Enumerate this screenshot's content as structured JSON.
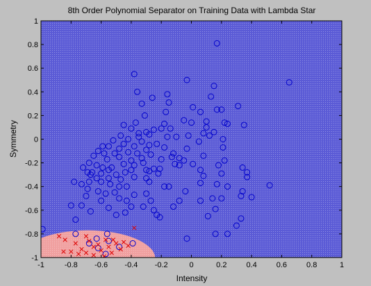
{
  "chart_data": {
    "type": "scatter",
    "title": "8th Order Polynomial Separator on Training Data with Lambda Star",
    "xlabel": "Intensity",
    "ylabel": "Symmetry",
    "xlim": [
      -1,
      1
    ],
    "ylim": [
      -1,
      1
    ],
    "xticks": [
      -1,
      -0.8,
      -0.6,
      -0.4,
      -0.2,
      0,
      0.2,
      0.4,
      0.6,
      0.8,
      1
    ],
    "xtick_labels": [
      "-1",
      "-0.8",
      "-0.6",
      "-0.4",
      "-0.2",
      "0",
      "0.2",
      "0.4",
      "0.6",
      "0.8",
      "1"
    ],
    "yticks": [
      1,
      0.8,
      0.6,
      0.4,
      0.2,
      0,
      -0.2,
      -0.4,
      -0.6,
      -0.8,
      -1
    ],
    "ytick_labels": [
      "1",
      "0.8",
      "0.6",
      "0.4",
      "0.2",
      "0",
      "-0.2",
      "-0.4",
      "-0.6",
      "-0.8",
      "-1"
    ],
    "grid": false,
    "colors": {
      "positive_region": "#5b5bd6",
      "negative_region": "#f0a0a0",
      "circle_marker": "#0000cc",
      "cross_marker": "#dd0000",
      "figure_background": "#c0c0c0"
    },
    "decision_region_negative": {
      "center": [
        -0.69,
        -1.01
      ],
      "radius_x": 0.45,
      "radius_y": 0.24
    },
    "series": [
      {
        "marker": "circle",
        "points": [
          [
            0.17,
            0.81
          ],
          [
            0.65,
            0.48
          ],
          [
            -0.38,
            0.55
          ],
          [
            -0.03,
            0.5
          ],
          [
            0.15,
            0.45
          ],
          [
            0.13,
            0.36
          ],
          [
            -0.36,
            0.4
          ],
          [
            -0.33,
            0.3
          ],
          [
            -0.26,
            0.35
          ],
          [
            -0.16,
            0.38
          ],
          [
            0.01,
            0.27
          ],
          [
            0.17,
            0.25
          ],
          [
            0.2,
            0.25
          ],
          [
            -0.15,
            0.31
          ],
          [
            -0.17,
            0.23
          ],
          [
            0.06,
            0.23
          ],
          [
            0.31,
            0.28
          ],
          [
            0.1,
            0.15
          ],
          [
            0.0,
            0.14
          ],
          [
            -0.31,
            0.2
          ],
          [
            -0.18,
            0.13
          ],
          [
            0.22,
            0.14
          ],
          [
            0.24,
            0.13
          ],
          [
            0.35,
            0.12
          ],
          [
            -0.05,
            0.16
          ],
          [
            -0.14,
            0.09
          ],
          [
            -0.2,
            0.09
          ],
          [
            0.1,
            0.1
          ],
          [
            0.15,
            0.06
          ],
          [
            -0.25,
            0.08
          ],
          [
            -0.3,
            0.06
          ],
          [
            -0.37,
            0.14
          ],
          [
            -0.45,
            0.12
          ],
          [
            -0.4,
            0.09
          ],
          [
            -0.35,
            0.05
          ],
          [
            -0.47,
            0.03
          ],
          [
            -0.28,
            0.04
          ],
          [
            0.08,
            0.05
          ],
          [
            -0.02,
            0.03
          ],
          [
            -0.16,
            0.02
          ],
          [
            0.12,
            0.03
          ],
          [
            0.05,
            -0.02
          ],
          [
            0.21,
            0.0
          ],
          [
            -0.1,
            0.02
          ],
          [
            -0.35,
            0.02
          ],
          [
            -0.42,
            0.0
          ],
          [
            -0.33,
            -0.02
          ],
          [
            -0.52,
            -0.01
          ],
          [
            -0.45,
            -0.04
          ],
          [
            -0.23,
            -0.04
          ],
          [
            -0.28,
            -0.05
          ],
          [
            -0.38,
            -0.06
          ],
          [
            -0.48,
            -0.08
          ],
          [
            -0.55,
            -0.06
          ],
          [
            -0.59,
            -0.06
          ],
          [
            -0.62,
            -0.1
          ],
          [
            -0.58,
            -0.12
          ],
          [
            -0.51,
            -0.12
          ],
          [
            -0.42,
            -0.11
          ],
          [
            -0.36,
            -0.12
          ],
          [
            -0.3,
            -0.09
          ],
          [
            -0.18,
            -0.07
          ],
          [
            -0.12,
            -0.12
          ],
          [
            -0.03,
            -0.08
          ],
          [
            0.21,
            -0.07
          ],
          [
            -0.65,
            -0.14
          ],
          [
            -0.56,
            -0.17
          ],
          [
            -0.48,
            -0.15
          ],
          [
            -0.4,
            -0.18
          ],
          [
            -0.33,
            -0.16
          ],
          [
            -0.27,
            -0.13
          ],
          [
            -0.2,
            -0.17
          ],
          [
            -0.08,
            -0.16
          ],
          [
            -0.13,
            -0.15
          ],
          [
            0.08,
            -0.14
          ],
          [
            -0.68,
            -0.2
          ],
          [
            -0.63,
            -0.22
          ],
          [
            -0.59,
            -0.24
          ],
          [
            -0.53,
            -0.24
          ],
          [
            -0.45,
            -0.21
          ],
          [
            -0.38,
            -0.22
          ],
          [
            -0.32,
            -0.2
          ],
          [
            -0.25,
            -0.25
          ],
          [
            -0.11,
            -0.21
          ],
          [
            -0.05,
            -0.18
          ],
          [
            0.01,
            -0.21
          ],
          [
            0.18,
            -0.22
          ],
          [
            0.22,
            -0.18
          ],
          [
            -0.72,
            -0.24
          ],
          [
            -0.69,
            -0.28
          ],
          [
            -0.66,
            -0.28
          ],
          [
            -0.6,
            -0.29
          ],
          [
            -0.55,
            -0.26
          ],
          [
            -0.5,
            -0.3
          ],
          [
            -0.44,
            -0.28
          ],
          [
            -0.4,
            -0.26
          ],
          [
            -0.3,
            -0.26
          ],
          [
            -0.28,
            -0.27
          ],
          [
            -0.21,
            -0.25
          ],
          [
            -0.08,
            -0.22
          ],
          [
            0.06,
            -0.26
          ],
          [
            -0.67,
            -0.3
          ],
          [
            -0.63,
            -0.33
          ],
          [
            -0.55,
            -0.33
          ],
          [
            -0.47,
            -0.34
          ],
          [
            -0.38,
            -0.32
          ],
          [
            -0.3,
            -0.33
          ],
          [
            -0.22,
            -0.29
          ],
          [
            0.08,
            -0.31
          ],
          [
            0.2,
            -0.29
          ],
          [
            0.37,
            -0.28
          ],
          [
            0.34,
            -0.24
          ],
          [
            -0.78,
            -0.36
          ],
          [
            -0.73,
            -0.38
          ],
          [
            -0.68,
            -0.36
          ],
          [
            -0.6,
            -0.36
          ],
          [
            -0.54,
            -0.38
          ],
          [
            -0.48,
            -0.4
          ],
          [
            -0.43,
            -0.4
          ],
          [
            -0.28,
            -0.36
          ],
          [
            -0.18,
            -0.4
          ],
          [
            0.06,
            -0.37
          ],
          [
            0.17,
            -0.38
          ],
          [
            0.24,
            -0.4
          ],
          [
            0.52,
            -0.39
          ],
          [
            -0.69,
            -0.42
          ],
          [
            -0.62,
            -0.44
          ],
          [
            -0.57,
            -0.46
          ],
          [
            -0.51,
            -0.45
          ],
          [
            -0.38,
            -0.47
          ],
          [
            -0.3,
            -0.46
          ],
          [
            -0.15,
            -0.4
          ],
          [
            -0.04,
            -0.44
          ],
          [
            0.34,
            -0.44
          ],
          [
            0.37,
            -0.32
          ],
          [
            -0.8,
            -0.56
          ],
          [
            -0.73,
            -0.56
          ],
          [
            -0.7,
            -0.48
          ],
          [
            -0.6,
            -0.52
          ],
          [
            -0.48,
            -0.5
          ],
          [
            -0.43,
            -0.52
          ],
          [
            -0.27,
            -0.52
          ],
          [
            -0.08,
            -0.52
          ],
          [
            0.06,
            -0.52
          ],
          [
            0.14,
            -0.5
          ],
          [
            0.2,
            -0.5
          ],
          [
            0.33,
            -0.48
          ],
          [
            0.4,
            -0.49
          ],
          [
            -0.67,
            -0.61
          ],
          [
            -0.55,
            -0.58
          ],
          [
            -0.4,
            -0.57
          ],
          [
            -0.32,
            -0.57
          ],
          [
            -0.25,
            -0.6
          ],
          [
            -0.12,
            -0.57
          ],
          [
            0.16,
            -0.59
          ],
          [
            -0.77,
            -0.68
          ],
          [
            -0.5,
            -0.64
          ],
          [
            -0.44,
            -0.62
          ],
          [
            -0.23,
            -0.64
          ],
          [
            0.11,
            -0.65
          ],
          [
            0.33,
            -0.67
          ],
          [
            -0.99,
            -0.76
          ],
          [
            -0.56,
            -0.8
          ],
          [
            -0.21,
            -0.66
          ],
          [
            0.24,
            -0.8
          ],
          [
            0.3,
            -0.73
          ],
          [
            0.16,
            -0.8
          ],
          [
            -0.03,
            -0.84
          ],
          [
            -0.77,
            -0.8
          ],
          [
            -0.63,
            -0.84
          ],
          [
            -0.55,
            -0.86
          ],
          [
            -0.68,
            -0.88
          ],
          [
            -0.62,
            -0.92
          ],
          [
            -0.57,
            -0.97
          ],
          [
            -0.48,
            -0.91
          ],
          [
            -0.39,
            -0.88
          ]
        ]
      },
      {
        "marker": "x",
        "points": [
          [
            -0.8,
            -0.95
          ],
          [
            -0.77,
            -0.88
          ],
          [
            -0.73,
            -0.93
          ],
          [
            -0.7,
            -0.96
          ],
          [
            -0.65,
            -0.91
          ],
          [
            -0.62,
            -0.89
          ],
          [
            -0.6,
            -0.94
          ],
          [
            -0.57,
            -0.85
          ],
          [
            -0.55,
            -0.91
          ],
          [
            -0.52,
            -0.85
          ],
          [
            -0.5,
            -0.88
          ],
          [
            -0.47,
            -0.93
          ],
          [
            -0.68,
            -0.86
          ],
          [
            -0.75,
            -0.97
          ],
          [
            -0.65,
            -0.98
          ],
          [
            -0.58,
            -0.99
          ],
          [
            -0.53,
            -0.96
          ],
          [
            -0.45,
            -0.87
          ],
          [
            -0.42,
            -0.9
          ],
          [
            -0.85,
            -0.95
          ],
          [
            -0.84,
            -0.85
          ],
          [
            -0.88,
            -0.82
          ],
          [
            -0.38,
            -0.75
          ],
          [
            -0.7,
            -0.82
          ]
        ]
      }
    ]
  }
}
